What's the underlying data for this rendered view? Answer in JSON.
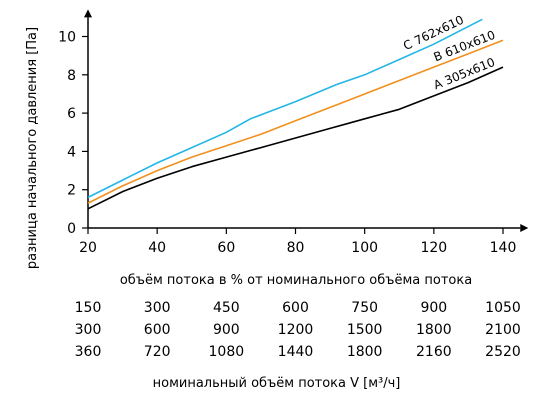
{
  "chart_data": {
    "type": "line",
    "xlabel": "объём потока в % от номинального объёма потока",
    "ylabel": "разница начального давления  [Па]",
    "xlim": [
      20,
      145
    ],
    "ylim": [
      0,
      11
    ],
    "xticks": [
      20,
      40,
      60,
      80,
      100,
      120,
      140
    ],
    "yticks": [
      0,
      2,
      4,
      6,
      8,
      10
    ],
    "grid": false,
    "series": [
      {
        "name": "A  305x610",
        "color": "#000000",
        "x": [
          20,
          30,
          40,
          50,
          60,
          70,
          80,
          90,
          100,
          110,
          120,
          130,
          140
        ],
        "y": [
          1.0,
          1.9,
          2.6,
          3.2,
          3.7,
          4.2,
          4.7,
          5.2,
          5.7,
          6.2,
          6.9,
          7.6,
          8.4
        ]
      },
      {
        "name": "B  610x610",
        "color": "#f0901e",
        "x": [
          20,
          30,
          40,
          50,
          60,
          70,
          80,
          90,
          100,
          110,
          120,
          130,
          140
        ],
        "y": [
          1.3,
          2.2,
          3.0,
          3.7,
          4.3,
          4.9,
          5.6,
          6.3,
          7.0,
          7.7,
          8.4,
          9.1,
          9.8
        ]
      },
      {
        "name": "C  762x610",
        "color": "#23b6e6",
        "x": [
          20,
          30,
          40,
          50,
          60,
          67,
          80,
          92,
          100,
          110,
          120,
          134
        ],
        "y": [
          1.6,
          2.5,
          3.4,
          4.2,
          5.0,
          5.7,
          6.6,
          7.5,
          8.0,
          8.8,
          9.6,
          10.9
        ]
      }
    ]
  },
  "flow_table": {
    "rows": [
      [
        "150",
        "300",
        "450",
        "600",
        "750",
        "900",
        "1050"
      ],
      [
        "300",
        "600",
        "900",
        "1200",
        "1500",
        "1800",
        "2100"
      ],
      [
        "360",
        "720",
        "1080",
        "1440",
        "1800",
        "2160",
        "2520"
      ]
    ],
    "title": "номинальный объём потока V [м³/ч]"
  }
}
